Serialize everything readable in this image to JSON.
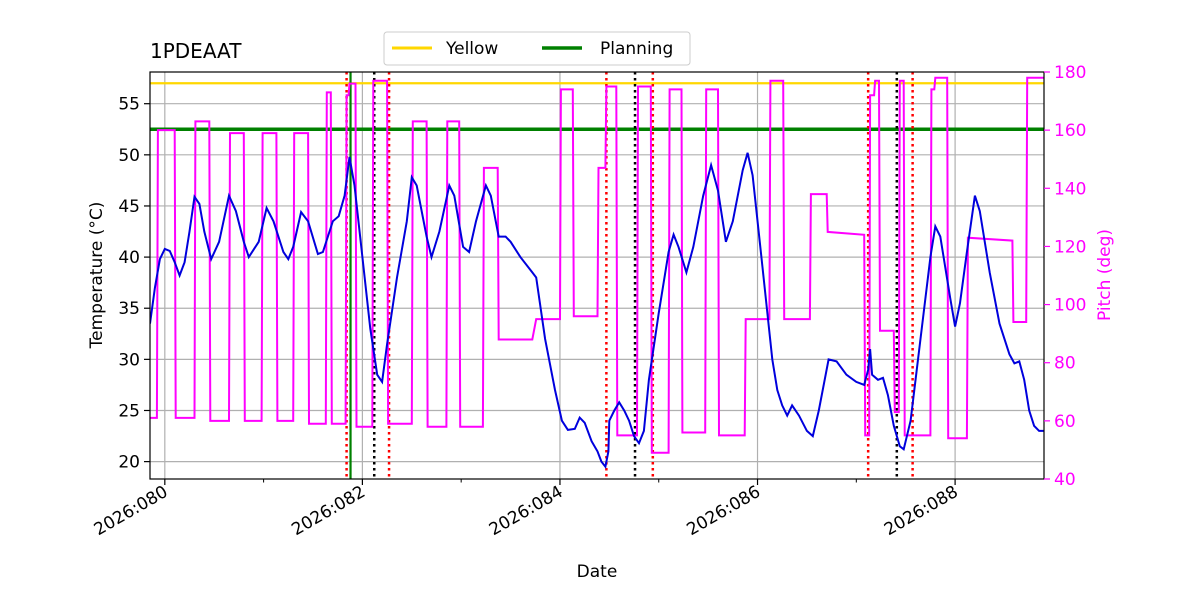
{
  "chart_data": {
    "type": "line",
    "title": "1PDEAAT",
    "xlabel": "Date",
    "ylabel": "Temperature ($^\\circ$C)",
    "ylabel_display": "Temperature (°C)",
    "y2label": "Pitch (deg)",
    "xlim": [
      79.85,
      88.9
    ],
    "ylim": [
      18.3,
      58.1
    ],
    "y2lim": [
      40,
      180
    ],
    "x_ticks": [
      {
        "value": 80,
        "label": "2026:080"
      },
      {
        "value": 82,
        "label": "2026:082"
      },
      {
        "value": 84,
        "label": "2026:084"
      },
      {
        "value": 86,
        "label": "2026:086"
      },
      {
        "value": 88,
        "label": "2026:088"
      }
    ],
    "x_minor_ticks": [
      81,
      83,
      85,
      87
    ],
    "y_ticks": [
      20,
      25,
      30,
      35,
      40,
      45,
      50,
      55
    ],
    "y2_ticks": [
      40,
      60,
      80,
      100,
      120,
      140,
      160,
      180
    ],
    "legend": {
      "placement": "top-center",
      "entries": [
        {
          "label": "Yellow",
          "color": "#ffd700"
        },
        {
          "label": "Planning",
          "color": "#008000"
        }
      ]
    },
    "hlines": [
      {
        "name": "Yellow",
        "y": 57.0,
        "color": "#ffd700"
      },
      {
        "name": "Planning",
        "y": 52.5,
        "color": "#008000"
      }
    ],
    "vlines": [
      {
        "x": 81.84,
        "color": "#ff0000",
        "style": "dotted"
      },
      {
        "x": 81.88,
        "color": "#008000",
        "style": "solid"
      },
      {
        "x": 82.12,
        "color": "#000000",
        "style": "dotted"
      },
      {
        "x": 82.27,
        "color": "#ff0000",
        "style": "dotted"
      },
      {
        "x": 84.47,
        "color": "#ff0000",
        "style": "dotted"
      },
      {
        "x": 84.76,
        "color": "#000000",
        "style": "dotted"
      },
      {
        "x": 84.94,
        "color": "#ff0000",
        "style": "dotted"
      },
      {
        "x": 87.12,
        "color": "#ff0000",
        "style": "dotted"
      },
      {
        "x": 87.41,
        "color": "#000000",
        "style": "dotted"
      },
      {
        "x": 87.57,
        "color": "#ff0000",
        "style": "dotted"
      }
    ],
    "series": [
      {
        "name": "Temperature",
        "axis": "left",
        "color": "#0000dd",
        "points": [
          [
            79.85,
            33.5
          ],
          [
            79.9,
            37.0
          ],
          [
            79.95,
            39.8
          ],
          [
            80.0,
            40.8
          ],
          [
            80.05,
            40.6
          ],
          [
            80.1,
            39.5
          ],
          [
            80.15,
            38.2
          ],
          [
            80.2,
            39.5
          ],
          [
            80.25,
            42.5
          ],
          [
            80.3,
            45.9
          ],
          [
            80.35,
            45.2
          ],
          [
            80.4,
            42.5
          ],
          [
            80.47,
            39.8
          ],
          [
            80.55,
            41.5
          ],
          [
            80.65,
            46.0
          ],
          [
            80.72,
            44.5
          ],
          [
            80.8,
            41.5
          ],
          [
            80.85,
            40.0
          ],
          [
            80.95,
            41.5
          ],
          [
            81.03,
            44.8
          ],
          [
            81.1,
            43.5
          ],
          [
            81.2,
            40.5
          ],
          [
            81.25,
            39.8
          ],
          [
            81.3,
            41.0
          ],
          [
            81.38,
            44.4
          ],
          [
            81.45,
            43.5
          ],
          [
            81.55,
            40.3
          ],
          [
            81.6,
            40.5
          ],
          [
            81.7,
            43.5
          ],
          [
            81.76,
            44.0
          ],
          [
            81.82,
            46.0
          ],
          [
            81.87,
            49.8
          ],
          [
            81.92,
            47.0
          ],
          [
            82.0,
            40.0
          ],
          [
            82.08,
            33.0
          ],
          [
            82.15,
            28.5
          ],
          [
            82.2,
            27.8
          ],
          [
            82.25,
            31.5
          ],
          [
            82.35,
            38.0
          ],
          [
            82.45,
            43.5
          ],
          [
            82.5,
            47.8
          ],
          [
            82.55,
            47.0
          ],
          [
            82.65,
            42.0
          ],
          [
            82.7,
            40.0
          ],
          [
            82.78,
            42.5
          ],
          [
            82.88,
            47.0
          ],
          [
            82.93,
            46.0
          ],
          [
            83.02,
            41.0
          ],
          [
            83.08,
            40.5
          ],
          [
            83.15,
            43.5
          ],
          [
            83.25,
            47.0
          ],
          [
            83.3,
            46.0
          ],
          [
            83.38,
            42.0
          ],
          [
            83.45,
            42.0
          ],
          [
            83.5,
            41.5
          ],
          [
            83.6,
            40.0
          ],
          [
            83.72,
            38.5
          ],
          [
            83.76,
            38.0
          ],
          [
            83.85,
            32.0
          ],
          [
            83.95,
            27.0
          ],
          [
            84.02,
            24.0
          ],
          [
            84.08,
            23.1
          ],
          [
            84.15,
            23.2
          ],
          [
            84.2,
            24.3
          ],
          [
            84.25,
            23.8
          ],
          [
            84.32,
            22.0
          ],
          [
            84.38,
            21.0
          ],
          [
            84.42,
            20.0
          ],
          [
            84.46,
            19.5
          ],
          [
            84.49,
            21.0
          ],
          [
            84.5,
            24.0
          ],
          [
            84.55,
            25.0
          ],
          [
            84.6,
            25.8
          ],
          [
            84.65,
            25.0
          ],
          [
            84.7,
            24.0
          ],
          [
            84.75,
            22.5
          ],
          [
            84.8,
            21.8
          ],
          [
            84.85,
            23.0
          ],
          [
            84.9,
            28.0
          ],
          [
            85.0,
            34.5
          ],
          [
            85.1,
            40.5
          ],
          [
            85.15,
            42.2
          ],
          [
            85.2,
            41.0
          ],
          [
            85.28,
            38.5
          ],
          [
            85.35,
            41.0
          ],
          [
            85.45,
            46.0
          ],
          [
            85.53,
            49.0
          ],
          [
            85.6,
            46.5
          ],
          [
            85.68,
            41.5
          ],
          [
            85.75,
            43.5
          ],
          [
            85.85,
            48.5
          ],
          [
            85.9,
            50.2
          ],
          [
            85.95,
            48.0
          ],
          [
            86.05,
            39.0
          ],
          [
            86.15,
            30.0
          ],
          [
            86.2,
            27.0
          ],
          [
            86.25,
            25.5
          ],
          [
            86.3,
            24.5
          ],
          [
            86.35,
            25.5
          ],
          [
            86.42,
            24.5
          ],
          [
            86.5,
            23.0
          ],
          [
            86.56,
            22.5
          ],
          [
            86.62,
            25.0
          ],
          [
            86.72,
            30.0
          ],
          [
            86.8,
            29.8
          ],
          [
            86.9,
            28.5
          ],
          [
            87.0,
            27.8
          ],
          [
            87.08,
            27.5
          ],
          [
            87.12,
            29.0
          ],
          [
            87.14,
            31.0
          ],
          [
            87.16,
            28.5
          ],
          [
            87.22,
            28.0
          ],
          [
            87.27,
            28.2
          ],
          [
            87.32,
            26.5
          ],
          [
            87.38,
            23.5
          ],
          [
            87.44,
            21.5
          ],
          [
            87.48,
            21.2
          ],
          [
            87.55,
            24.0
          ],
          [
            87.65,
            32.0
          ],
          [
            87.75,
            40.0
          ],
          [
            87.8,
            43.0
          ],
          [
            87.85,
            42.0
          ],
          [
            87.95,
            36.0
          ],
          [
            88.0,
            33.2
          ],
          [
            88.05,
            35.5
          ],
          [
            88.12,
            40.5
          ],
          [
            88.2,
            46.0
          ],
          [
            88.25,
            44.5
          ],
          [
            88.35,
            38.5
          ],
          [
            88.45,
            33.5
          ],
          [
            88.55,
            30.5
          ],
          [
            88.6,
            29.6
          ],
          [
            88.65,
            29.8
          ],
          [
            88.7,
            28.0
          ],
          [
            88.75,
            25.0
          ],
          [
            88.8,
            23.5
          ],
          [
            88.85,
            23.0
          ],
          [
            88.9,
            23.0
          ]
        ]
      },
      {
        "name": "Pitch",
        "axis": "right",
        "color": "#ff00ff",
        "points": [
          [
            79.85,
            61
          ],
          [
            79.92,
            61
          ],
          [
            79.93,
            160
          ],
          [
            80.1,
            160
          ],
          [
            80.11,
            61
          ],
          [
            80.3,
            61
          ],
          [
            80.31,
            163
          ],
          [
            80.45,
            163
          ],
          [
            80.46,
            60
          ],
          [
            80.65,
            60
          ],
          [
            80.66,
            159
          ],
          [
            80.8,
            159
          ],
          [
            80.81,
            60
          ],
          [
            80.98,
            60
          ],
          [
            80.99,
            159
          ],
          [
            81.13,
            159
          ],
          [
            81.14,
            60
          ],
          [
            81.3,
            60
          ],
          [
            81.31,
            159
          ],
          [
            81.45,
            159
          ],
          [
            81.46,
            59
          ],
          [
            81.63,
            59
          ],
          [
            81.64,
            173
          ],
          [
            81.68,
            173
          ],
          [
            81.69,
            59
          ],
          [
            81.83,
            59
          ],
          [
            81.84,
            172
          ],
          [
            81.86,
            172
          ],
          [
            81.87,
            176
          ],
          [
            81.93,
            176
          ],
          [
            81.94,
            58
          ],
          [
            82.1,
            58
          ],
          [
            82.11,
            177
          ],
          [
            82.25,
            177
          ],
          [
            82.26,
            59
          ],
          [
            82.5,
            59
          ],
          [
            82.51,
            163
          ],
          [
            82.65,
            163
          ],
          [
            82.66,
            58
          ],
          [
            82.85,
            58
          ],
          [
            82.86,
            163
          ],
          [
            82.98,
            163
          ],
          [
            82.99,
            58
          ],
          [
            83.22,
            58
          ],
          [
            83.23,
            147
          ],
          [
            83.37,
            147
          ],
          [
            83.38,
            88
          ],
          [
            83.72,
            88
          ],
          [
            83.76,
            95
          ],
          [
            84.0,
            95
          ],
          [
            84.01,
            174
          ],
          [
            84.13,
            174
          ],
          [
            84.14,
            96
          ],
          [
            84.38,
            96
          ],
          [
            84.39,
            147
          ],
          [
            84.46,
            147
          ],
          [
            84.47,
            175
          ],
          [
            84.57,
            175
          ],
          [
            84.58,
            55
          ],
          [
            84.78,
            55
          ],
          [
            84.79,
            175
          ],
          [
            84.92,
            175
          ],
          [
            84.93,
            49
          ],
          [
            85.1,
            49
          ],
          [
            85.11,
            174
          ],
          [
            85.23,
            174
          ],
          [
            85.24,
            56
          ],
          [
            85.47,
            56
          ],
          [
            85.48,
            174
          ],
          [
            85.6,
            174
          ],
          [
            85.61,
            55
          ],
          [
            85.87,
            55
          ],
          [
            85.88,
            95
          ],
          [
            86.12,
            95
          ],
          [
            86.13,
            177
          ],
          [
            86.26,
            177
          ],
          [
            86.27,
            95
          ],
          [
            86.53,
            95
          ],
          [
            86.54,
            138
          ],
          [
            86.7,
            138
          ],
          [
            86.71,
            125
          ],
          [
            87.08,
            124
          ],
          [
            87.09,
            55
          ],
          [
            87.13,
            55
          ],
          [
            87.14,
            172
          ],
          [
            87.18,
            172
          ],
          [
            87.19,
            177
          ],
          [
            87.23,
            177
          ],
          [
            87.24,
            91
          ],
          [
            87.38,
            91
          ],
          [
            87.39,
            63
          ],
          [
            87.43,
            63
          ],
          [
            87.44,
            177
          ],
          [
            87.48,
            177
          ],
          [
            87.49,
            55
          ],
          [
            87.75,
            55
          ],
          [
            87.76,
            174
          ],
          [
            87.79,
            174
          ],
          [
            87.8,
            178
          ],
          [
            87.92,
            178
          ],
          [
            87.93,
            54
          ],
          [
            88.12,
            54
          ],
          [
            88.13,
            123
          ],
          [
            88.58,
            122
          ],
          [
            88.59,
            94
          ],
          [
            88.72,
            94
          ],
          [
            88.73,
            178
          ],
          [
            88.9,
            178
          ]
        ]
      }
    ]
  }
}
